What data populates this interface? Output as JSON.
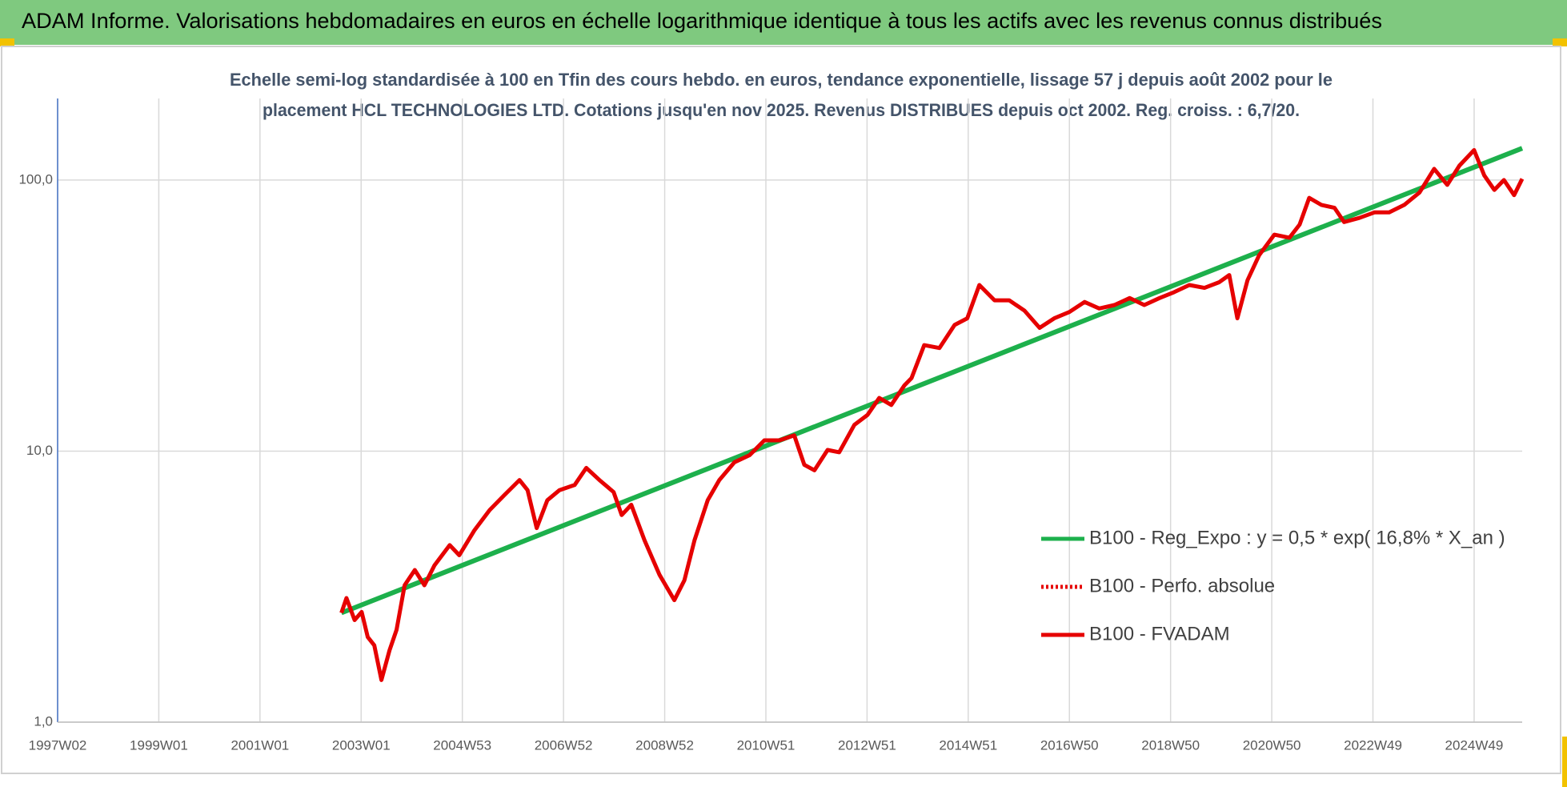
{
  "chart_data": {
    "type": "line",
    "title": "ADAM Informe. Valorisations hebdomadaires en euros en échelle logarithmique identique à tous les actifs avec les revenus connus distribués",
    "subtitle": [
      "Echelle semi-log standardisée à 100 en Tfin des cours hebdo. en euros, tendance exponentielle, lissage 57 j depuis août 2002 pour le",
      "placement HCL TECHNOLOGIES LTD. Cotations jusqu'en nov 2025.  Revenus DISTRIBUES depuis oct 2002. Reg. croiss. : 6,7/20."
    ],
    "log_y": true,
    "grid": true,
    "xlim": [
      1997,
      2025.95
    ],
    "xticks": [
      {
        "value": 1997,
        "label": "1997W02"
      },
      {
        "value": 1999,
        "label": "1999W01"
      },
      {
        "value": 2001,
        "label": "2001W01"
      },
      {
        "value": 2003,
        "label": "2003W01"
      },
      {
        "value": 2005,
        "label": "2004W53"
      },
      {
        "value": 2007,
        "label": "2006W52"
      },
      {
        "value": 2009,
        "label": "2008W52"
      },
      {
        "value": 2011,
        "label": "2010W51"
      },
      {
        "value": 2013,
        "label": "2012W51"
      },
      {
        "value": 2015,
        "label": "2014W51"
      },
      {
        "value": 2017,
        "label": "2016W50"
      },
      {
        "value": 2019,
        "label": "2018W50"
      },
      {
        "value": 2021,
        "label": "2020W50"
      },
      {
        "value": 2023,
        "label": "2022W49"
      },
      {
        "value": 2025,
        "label": "2024W49"
      }
    ],
    "ylim": [
      1,
      200
    ],
    "yticks": [
      {
        "value": 1,
        "label": "1,0"
      },
      {
        "value": 10,
        "label": "10,0"
      },
      {
        "value": 100,
        "label": "100,0"
      }
    ],
    "series": [
      {
        "name": "B100 - Reg_Expo : y = 0,5 * exp( 16,8% *  X_an )",
        "color": "#1db04c",
        "line_style": "solid",
        "x": [
          2002.61,
          2025.95
        ],
        "values": [
          2.53,
          131
        ]
      },
      {
        "name": "B100 - Perfo. absolue",
        "color": "#e60000",
        "line_style": "dotted",
        "x": [],
        "values": []
      },
      {
        "name": "B100 - FVADAM",
        "color": "#e60000",
        "line_style": "solid",
        "x": [
          2002.61,
          2002.71,
          2002.87,
          2003.01,
          2003.13,
          2003.26,
          2003.4,
          2003.56,
          2003.7,
          2003.86,
          2004.06,
          2004.25,
          2004.45,
          2004.75,
          2004.94,
          2005.24,
          2005.54,
          2005.83,
          2006.13,
          2006.29,
          2006.47,
          2006.68,
          2006.92,
          2007.22,
          2007.45,
          2007.71,
          2007.99,
          2008.15,
          2008.34,
          2008.6,
          2008.9,
          2009.19,
          2009.39,
          2009.59,
          2009.85,
          2010.08,
          2010.38,
          2010.68,
          2010.97,
          2011.27,
          2011.56,
          2011.76,
          2011.96,
          2012.22,
          2012.45,
          2012.75,
          2013.01,
          2013.24,
          2013.48,
          2013.74,
          2013.88,
          2014.13,
          2014.43,
          2014.73,
          2014.98,
          2015.22,
          2015.52,
          2015.81,
          2016.11,
          2016.41,
          2016.7,
          2017.0,
          2017.3,
          2017.59,
          2017.89,
          2018.19,
          2018.48,
          2018.78,
          2019.07,
          2019.37,
          2019.67,
          2019.96,
          2020.16,
          2020.32,
          2020.52,
          2020.75,
          2021.05,
          2021.35,
          2021.55,
          2021.74,
          2021.98,
          2022.24,
          2022.43,
          2022.73,
          2023.03,
          2023.32,
          2023.62,
          2023.92,
          2024.21,
          2024.47,
          2024.71,
          2025.0,
          2025.2,
          2025.4,
          2025.59,
          2025.79,
          2025.95
        ],
        "values": [
          2.53,
          2.87,
          2.38,
          2.55,
          2.06,
          1.92,
          1.43,
          1.84,
          2.19,
          3.2,
          3.64,
          3.2,
          3.79,
          4.5,
          4.13,
          5.11,
          6.06,
          6.88,
          7.82,
          7.18,
          5.2,
          6.59,
          7.18,
          7.5,
          8.67,
          7.82,
          7.06,
          5.81,
          6.34,
          4.69,
          3.49,
          2.82,
          3.34,
          4.69,
          6.59,
          7.82,
          9.1,
          9.66,
          10.96,
          10.96,
          11.44,
          8.9,
          8.5,
          10.1,
          9.9,
          12.5,
          13.6,
          15.7,
          14.8,
          17.5,
          18.6,
          24.6,
          24,
          29.2,
          30.9,
          41,
          36,
          36,
          33,
          28.5,
          30.9,
          32.6,
          35.5,
          33.6,
          34.6,
          36.7,
          34.6,
          36.7,
          38.6,
          41,
          40,
          42,
          44.6,
          30.9,
          42.7,
          52.8,
          62.9,
          61.3,
          68.5,
          86,
          81,
          79,
          70,
          72.5,
          76,
          76,
          81,
          90,
          110,
          96,
          113,
          129,
          104,
          92,
          100,
          88,
          101
        ]
      }
    ]
  }
}
